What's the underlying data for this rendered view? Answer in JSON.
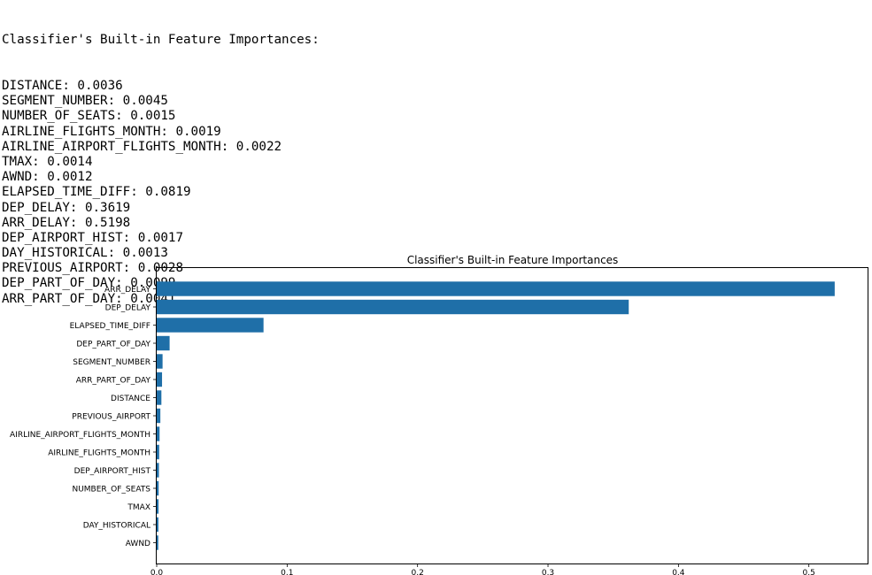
{
  "console": {
    "header": "Classifier's Built-in Feature Importances:",
    "lines": [
      {
        "name": "DISTANCE",
        "value": "0.0036"
      },
      {
        "name": "SEGMENT_NUMBER",
        "value": "0.0045"
      },
      {
        "name": "NUMBER_OF_SEATS",
        "value": "0.0015"
      },
      {
        "name": "AIRLINE_FLIGHTS_MONTH",
        "value": "0.0019"
      },
      {
        "name": "AIRLINE_AIRPORT_FLIGHTS_MONTH",
        "value": "0.0022"
      },
      {
        "name": "TMAX",
        "value": "0.0014"
      },
      {
        "name": "AWND",
        "value": "0.0012"
      },
      {
        "name": "ELAPSED_TIME_DIFF",
        "value": "0.0819"
      },
      {
        "name": "DEP_DELAY",
        "value": "0.3619"
      },
      {
        "name": "ARR_DELAY",
        "value": "0.5198"
      },
      {
        "name": "DEP_AIRPORT_HIST",
        "value": "0.0017"
      },
      {
        "name": "DAY_HISTORICAL",
        "value": "0.0013"
      },
      {
        "name": "PREVIOUS_AIRPORT",
        "value": "0.0028"
      },
      {
        "name": "DEP_PART_OF_DAY",
        "value": "0.0099"
      },
      {
        "name": "ARR_PART_OF_DAY",
        "value": "0.0041"
      }
    ]
  },
  "chart_data": {
    "type": "bar",
    "orientation": "horizontal",
    "title": "Classifier's Built-in Feature Importances",
    "xlabel": "",
    "ylabel": "",
    "categories": [
      "ARR_DELAY",
      "DEP_DELAY",
      "ELAPSED_TIME_DIFF",
      "DEP_PART_OF_DAY",
      "SEGMENT_NUMBER",
      "ARR_PART_OF_DAY",
      "DISTANCE",
      "PREVIOUS_AIRPORT",
      "AIRLINE_AIRPORT_FLIGHTS_MONTH",
      "AIRLINE_FLIGHTS_MONTH",
      "DEP_AIRPORT_HIST",
      "NUMBER_OF_SEATS",
      "TMAX",
      "DAY_HISTORICAL",
      "AWND"
    ],
    "values": [
      0.5198,
      0.3619,
      0.0819,
      0.0099,
      0.0045,
      0.0041,
      0.0036,
      0.0028,
      0.0022,
      0.0019,
      0.0017,
      0.0015,
      0.0014,
      0.0013,
      0.0012
    ],
    "xlim": [
      0,
      0.545
    ],
    "xticks": [
      0.0,
      0.1,
      0.2,
      0.3,
      0.4,
      0.5
    ],
    "xtick_labels": [
      "0.0",
      "0.1",
      "0.2",
      "0.3",
      "0.4",
      "0.5"
    ],
    "bar_color": "#1f6fa8",
    "grid": false,
    "legend": "none"
  }
}
